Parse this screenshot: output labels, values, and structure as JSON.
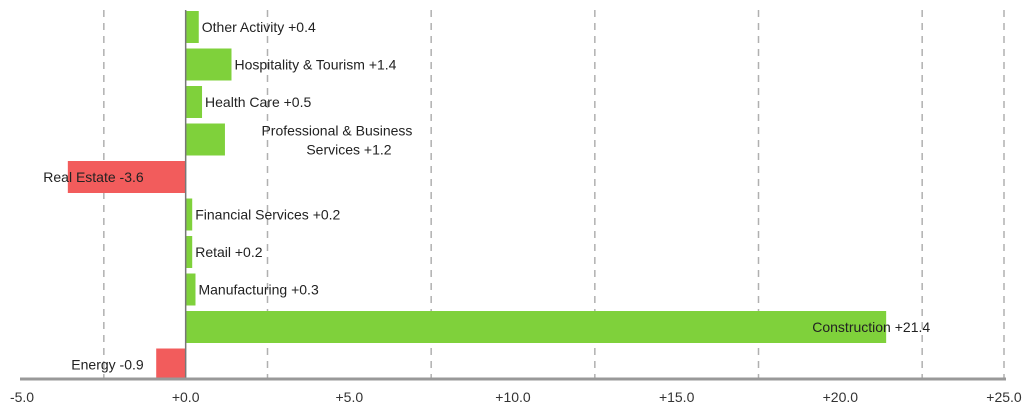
{
  "chart_data": {
    "type": "bar",
    "orientation": "horizontal",
    "categories": [
      "Other Activity",
      "Hospitality & Tourism",
      "Health Care",
      "Professional & Business Services",
      "Real Estate",
      "Financial Services",
      "Retail",
      "Manufacturing",
      "Construction",
      "Energy"
    ],
    "values": [
      0.4,
      1.4,
      0.5,
      1.2,
      -3.6,
      0.2,
      0.2,
      0.3,
      21.4,
      -0.9
    ],
    "labels": [
      [
        "Other Activity +0.4"
      ],
      [
        "Hospitality & Tourism +1.4"
      ],
      [
        "Health Care +0.5"
      ],
      [
        "Professional & Business",
        "Services +1.2"
      ],
      [
        "Real Estate -3.6"
      ],
      [
        "Financial Services +0.2"
      ],
      [
        "Retail +0.2"
      ],
      [
        "Manufacturing +0.3"
      ],
      [
        "Construction +21.4"
      ],
      [
        "Energy -0.9"
      ]
    ],
    "xlim": [
      -5,
      25
    ],
    "xticks": [
      -5,
      0,
      5,
      10,
      15,
      20,
      25
    ],
    "xtick_labels": [
      "-5.0",
      "+0.0",
      "+5.0",
      "+10.0",
      "+15.0",
      "+20.0",
      "+25.0"
    ],
    "grid_values": [
      -2.5,
      2.5,
      7.5,
      12.5,
      17.5,
      22.5,
      25
    ],
    "grid": true,
    "colors": {
      "positive": "#7fd13b",
      "negative": "#f25c5c",
      "axis": "#999999",
      "grid": "#b0b0b0"
    }
  }
}
